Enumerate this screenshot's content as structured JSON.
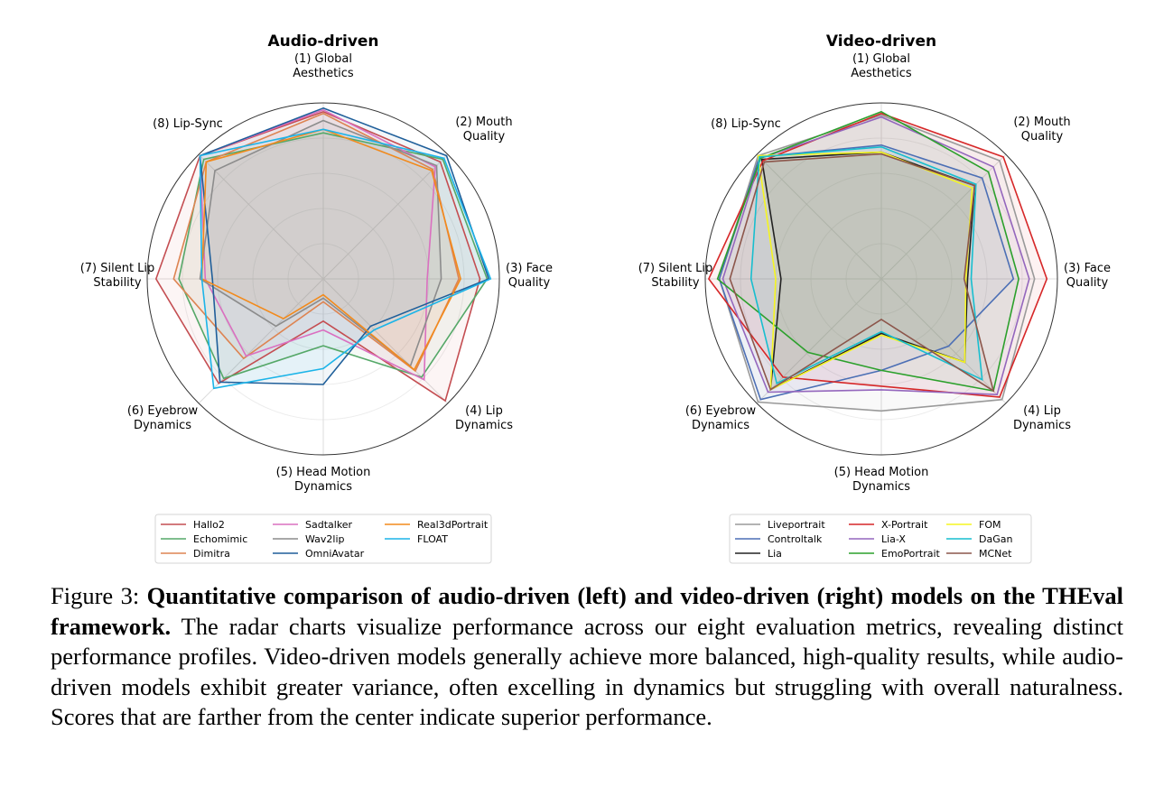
{
  "chart_data": [
    {
      "type": "radar",
      "title": "Audio-driven",
      "axes": [
        [
          "(1) Global",
          "Aesthetics"
        ],
        [
          "(2) Mouth",
          "Quality"
        ],
        [
          "(3) Face",
          "Quality"
        ],
        [
          "(4) Lip",
          "Dynamics"
        ],
        [
          "(5) Head Motion",
          "Dynamics"
        ],
        [
          "(6) Eyebrow",
          "Dynamics"
        ],
        [
          "(7) Silent Lip",
          "Stability"
        ],
        [
          "(8) Lip-Sync"
        ]
      ],
      "range": [
        0,
        1
      ],
      "grid": true,
      "legend_position": "bottom",
      "legend_columns": 3,
      "series": [
        {
          "name": "Hallo2",
          "color": "#c44e52",
          "values": [
            0.95,
            0.94,
            0.89,
            0.98,
            0.24,
            0.84,
            0.95,
            0.99
          ]
        },
        {
          "name": "Echomimic",
          "color": "#55a868",
          "values": [
            0.83,
            0.96,
            0.93,
            0.79,
            0.38,
            0.8,
            0.82,
            0.96
          ]
        },
        {
          "name": "Dimitra",
          "color": "#dd8452",
          "values": [
            0.94,
            0.88,
            0.77,
            0.74,
            0.13,
            0.64,
            0.85,
            0.94
          ]
        },
        {
          "name": "Sadtalker",
          "color": "#da70c0",
          "values": [
            0.96,
            0.9,
            0.59,
            0.81,
            0.29,
            0.62,
            0.67,
            0.99
          ]
        },
        {
          "name": "Wav2lip",
          "color": "#8c8c8c",
          "values": [
            0.9,
            0.91,
            0.67,
            0.7,
            0.11,
            0.38,
            0.7,
            0.87
          ]
        },
        {
          "name": "OmniAvatar",
          "color": "#1f5f9a",
          "values": [
            0.97,
            0.99,
            0.94,
            0.38,
            0.6,
            0.83,
            0.63,
            0.99
          ]
        },
        {
          "name": "Real3dPortrait",
          "color": "#f28a1c",
          "values": [
            0.85,
            0.87,
            0.78,
            0.73,
            0.09,
            0.32,
            0.69,
            0.94
          ]
        },
        {
          "name": "FLOAT",
          "color": "#1cb4e8",
          "values": [
            0.85,
            0.97,
            0.95,
            0.41,
            0.51,
            0.88,
            0.69,
            0.99
          ]
        }
      ]
    },
    {
      "type": "radar",
      "title": "Video-driven",
      "axes": [
        [
          "(1) Global",
          "Aesthetics"
        ],
        [
          "(2) Mouth",
          "Quality"
        ],
        [
          "(3) Face",
          "Quality"
        ],
        [
          "(4) Lip",
          "Dynamics"
        ],
        [
          "(5) Head Motion",
          "Dynamics"
        ],
        [
          "(6) Eyebrow",
          "Dynamics"
        ],
        [
          "(7) Silent Lip",
          "Stability"
        ],
        [
          "(8) Lip-Sync"
        ]
      ],
      "range": [
        0,
        1
      ],
      "grid": true,
      "legend_position": "bottom",
      "legend_columns": 3,
      "series": [
        {
          "name": "Liveportrait",
          "color": "#9a9a9a",
          "values": [
            0.93,
            0.95,
            0.87,
            0.97,
            0.75,
            0.99,
            0.92,
            0.99
          ]
        },
        {
          "name": "Controltalk",
          "color": "#4c6fb5",
          "values": [
            0.76,
            0.81,
            0.75,
            0.54,
            0.52,
            0.97,
            0.92,
            0.98
          ]
        },
        {
          "name": "Lia",
          "color": "#222222",
          "values": [
            0.72,
            0.75,
            0.49,
            0.67,
            0.31,
            0.89,
            0.57,
            0.96
          ]
        },
        {
          "name": "X-Portrait",
          "color": "#d62728",
          "values": [
            0.94,
            0.98,
            0.94,
            0.95,
            0.61,
            0.79,
            0.98,
            0.95
          ]
        },
        {
          "name": "Lia-X",
          "color": "#9467bd",
          "values": [
            0.92,
            0.9,
            0.84,
            0.93,
            0.63,
            0.91,
            0.9,
            0.97
          ]
        },
        {
          "name": "EmoPortrait",
          "color": "#2ca02c",
          "values": [
            0.95,
            0.86,
            0.78,
            0.9,
            0.52,
            0.59,
            0.93,
            0.97
          ]
        },
        {
          "name": "FOM",
          "color": "#f5f520",
          "values": [
            0.72,
            0.73,
            0.48,
            0.67,
            0.32,
            0.89,
            0.6,
            0.99
          ]
        },
        {
          "name": "DaGan",
          "color": "#17becf",
          "values": [
            0.75,
            0.76,
            0.51,
            0.81,
            0.3,
            0.84,
            0.74,
            0.98
          ]
        },
        {
          "name": "MCNet",
          "color": "#8c564b",
          "values": [
            0.71,
            0.75,
            0.47,
            0.9,
            0.23,
            0.89,
            0.86,
            0.94
          ]
        }
      ]
    }
  ],
  "caption": {
    "label": "Figure 3:",
    "bold": "Quantitative comparison of audio-driven (left) and video-driven (right) models on the THEval framework.",
    "text": "The radar charts visualize performance across our eight evaluation metrics, revealing distinct performance profiles.  Video-driven models generally achieve more balanced, high-quality results, while audio-driven models exhibit greater variance, often excelling in dynamics but struggling with overall naturalness.  Scores that are farther from the center indicate superior performance."
  }
}
